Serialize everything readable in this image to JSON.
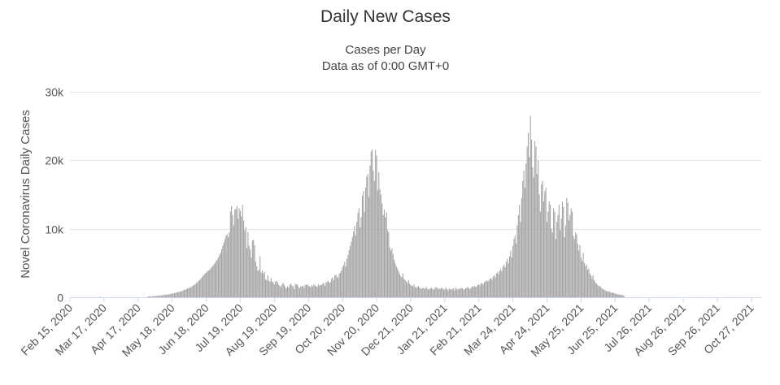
{
  "chart_data": {
    "type": "bar",
    "title": "Daily New Cases",
    "subtitle": [
      "Cases per Day",
      "Data as of 0:00 GMT+0"
    ],
    "ylabel": "Novel Coronavirus Daily Cases",
    "xlabel": "",
    "ylim": [
      0,
      30000
    ],
    "yticks": [
      0,
      10000,
      20000,
      30000
    ],
    "ytick_labels": [
      "0",
      "10k",
      "20k",
      "30k"
    ],
    "xlim": [
      "2020-02-15",
      "2021-11-05"
    ],
    "xtick_dates": [
      "2020-02-15",
      "2020-03-17",
      "2020-04-17",
      "2020-05-18",
      "2020-06-18",
      "2020-07-19",
      "2020-08-19",
      "2020-09-19",
      "2020-10-20",
      "2020-11-20",
      "2020-12-21",
      "2021-01-21",
      "2021-02-21",
      "2021-03-24",
      "2021-04-24",
      "2021-05-25",
      "2021-06-25",
      "2021-07-26",
      "2021-08-26",
      "2021-09-26",
      "2021-10-27"
    ],
    "xtick_labels": [
      "Feb 15, 2020",
      "Mar 17, 2020",
      "Apr 17, 2020",
      "May 18, 2020",
      "Jun 18, 2020",
      "Jul 19, 2020",
      "Aug 19, 2020",
      "Sep 19, 2020",
      "Oct 20, 2020",
      "Nov 20, 2020",
      "Dec 21, 2020",
      "Jan 21, 2021",
      "Feb 21, 2021",
      "Mar 24, 2021",
      "Apr 24, 2021",
      "May 25, 2021",
      "Jun 25, 2021",
      "Jul 26, 2021",
      "Aug 26, 2021",
      "Sep 26, 2021",
      "Oct 27, 2021"
    ],
    "grid": true,
    "bar_color": "#a3a3a3",
    "series": [
      {
        "frequency": "daily",
        "start": "2020-02-15",
        "values": [
          0,
          0,
          0,
          0,
          0,
          0,
          0,
          0,
          0,
          0,
          0,
          0,
          0,
          0,
          0,
          0,
          0,
          0,
          0,
          0,
          0,
          0,
          0,
          0,
          0,
          0,
          0,
          100,
          0,
          0,
          0,
          0,
          0,
          0,
          0,
          0,
          0,
          0,
          0,
          0,
          0,
          0,
          0,
          0,
          0,
          0,
          0,
          0,
          0,
          0,
          0,
          0,
          0,
          0,
          0,
          0,
          0,
          0,
          0,
          0,
          0,
          0,
          0,
          0,
          0,
          0,
          0,
          0,
          0,
          0,
          0,
          100,
          150,
          100,
          100,
          150,
          200,
          150,
          200,
          200,
          250,
          200,
          300,
          250,
          300,
          350,
          300,
          400,
          350,
          450,
          400,
          500,
          450,
          600,
          500,
          650,
          600,
          750,
          700,
          800,
          800,
          900,
          900,
          1000,
          1100,
          1100,
          1200,
          1300,
          1300,
          1500,
          1400,
          1600,
          1700,
          1800,
          1900,
          2100,
          2200,
          2400,
          2500,
          2700,
          2900,
          3100,
          3300,
          3500,
          3600,
          3800,
          3900,
          4000,
          4200,
          4400,
          4600,
          4800,
          5000,
          5300,
          5500,
          5800,
          6200,
          6500,
          7000,
          7500,
          8000,
          8500,
          9000,
          9200,
          8800,
          9500,
          12500,
          13300,
          12000,
          10500,
          12800,
          12900,
          13300,
          11500,
          13000,
          12600,
          11800,
          13500,
          11200,
          9800,
          10300,
          7200,
          9500,
          7500,
          7000,
          5800,
          8300,
          8400,
          7600,
          5200,
          4500,
          3900,
          4000,
          6000,
          3600,
          3900,
          3500,
          3700,
          2600,
          2500,
          3200,
          2400,
          2300,
          2800,
          2300,
          2200,
          1900,
          2300,
          2400,
          2100,
          1800,
          1700,
          1500,
          1900,
          2100,
          1800,
          1500,
          1300,
          1600,
          1400,
          1800,
          2000,
          1700,
          1600,
          1200,
          2000,
          1800,
          1900,
          1500,
          1300,
          1600,
          1600,
          1700,
          1400,
          1800,
          1800,
          1900,
          1700,
          1600,
          1500,
          1800,
          1600,
          1900,
          1700,
          1700,
          1500,
          1900,
          1700,
          1800,
          1800,
          2000,
          2100,
          1700,
          2200,
          2300,
          2400,
          2100,
          2200,
          2700,
          2900,
          2500,
          3200,
          3300,
          3000,
          2800,
          3400,
          3600,
          3900,
          4400,
          4700,
          5200,
          4500,
          5600,
          6200,
          6900,
          7500,
          8100,
          8800,
          9600,
          10400,
          9000,
          11000,
          12300,
          13000,
          10200,
          11700,
          14800,
          15500,
          12500,
          16000,
          17600,
          18000,
          14600,
          19200,
          21300,
          21600,
          18500,
          17000,
          21500,
          20700,
          15600,
          18300,
          15800,
          15000,
          13700,
          12000,
          12800,
          11700,
          12400,
          9800,
          9500,
          7300,
          6800,
          7100,
          6300,
          5500,
          5000,
          4500,
          4200,
          3800,
          3400,
          3100,
          2900,
          3500,
          2700,
          2500,
          2300,
          2100,
          2500,
          2000,
          1800,
          1700,
          1600,
          1900,
          1500,
          1400,
          1500,
          1700,
          1400,
          1300,
          1200,
          1400,
          1300,
          1200,
          1500,
          1300,
          1100,
          1200,
          1300,
          1400,
          1200,
          1100,
          1300,
          1500,
          1400,
          1200,
          1300,
          1200,
          1400,
          1300,
          1100,
          1200,
          1400,
          1200,
          1000,
          1300,
          1200,
          1100,
          1200,
          1300,
          1000,
          1400,
          1200,
          1100,
          1300,
          1200,
          1400,
          1300,
          1100,
          1200,
          1300,
          1400,
          1500,
          1300,
          1200,
          1400,
          1600,
          1500,
          1700,
          1500,
          1600,
          1800,
          1900,
          1700,
          2000,
          2100,
          1900,
          2200,
          2300,
          2500,
          2300,
          2400,
          2700,
          2800,
          2600,
          3000,
          3200,
          2900,
          3500,
          3700,
          3400,
          3900,
          4200,
          3800,
          4500,
          4800,
          4400,
          5200,
          5600,
          5000,
          6000,
          6800,
          5800,
          7500,
          8500,
          9000,
          7800,
          10500,
          12000,
          13500,
          11000,
          14500,
          17000,
          18500,
          16000,
          19500,
          22000,
          24000,
          20500,
          26500,
          23000,
          19000,
          17500,
          22800,
          22000,
          18000,
          20000,
          15000,
          12500,
          16500,
          17000,
          14000,
          15500,
          16000,
          11000,
          12500,
          14000,
          13500,
          10000,
          9500,
          13000,
          12500,
          8500,
          11000,
          12000,
          13500,
          9800,
          11500,
          14000,
          13200,
          8800,
          10500,
          14500,
          13800,
          11200,
          12000,
          13000,
          12500,
          9000,
          8500,
          9500,
          9200,
          7800,
          6800,
          7600,
          5800,
          5300,
          6500,
          5000,
          4500,
          4800,
          4000,
          4200,
          3500,
          3200,
          2800,
          3200,
          2500,
          2200,
          2000,
          1800,
          1600,
          1700,
          1500,
          1300,
          1200,
          1100,
          1000,
          900,
          900,
          850,
          800,
          700,
          650,
          700,
          600,
          550,
          500,
          450,
          400,
          350,
          400,
          350,
          300,
          250
        ]
      }
    ]
  }
}
